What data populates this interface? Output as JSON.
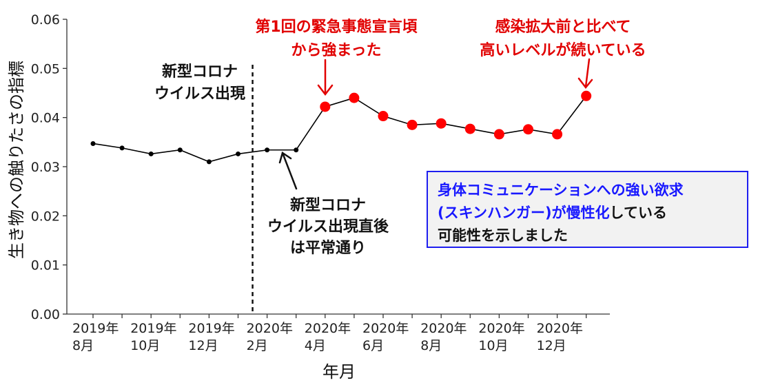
{
  "chart_data": {
    "type": "line",
    "x": [
      "2019-08",
      "2019-09",
      "2019-10",
      "2019-11",
      "2019-12",
      "2020-01",
      "2020-02",
      "2020-03",
      "2020-04",
      "2020-05",
      "2020-06",
      "2020-07",
      "2020-08",
      "2020-09",
      "2020-10",
      "2020-11",
      "2020-12",
      "2021-01"
    ],
    "values": [
      0.0347,
      0.0338,
      0.0326,
      0.0334,
      0.031,
      0.0326,
      0.0334,
      0.0334,
      0.0422,
      0.044,
      0.0403,
      0.0385,
      0.0388,
      0.0377,
      0.0366,
      0.0376,
      0.0366,
      0.0444
    ],
    "highlighted_from_index": 8,
    "ylim": [
      0,
      0.06
    ],
    "yticks": [
      "0.00",
      "0.01",
      "0.02",
      "0.03",
      "0.04",
      "0.05",
      "0.06"
    ],
    "xticks": [
      {
        "year": "2019年",
        "month": "8月"
      },
      {
        "year": "2019年",
        "month": "10月"
      },
      {
        "year": "2019年",
        "month": "12月"
      },
      {
        "year": "2020年",
        "month": "2月"
      },
      {
        "year": "2020年",
        "month": "4月"
      },
      {
        "year": "2020年",
        "month": "6月"
      },
      {
        "year": "2020年",
        "month": "8月"
      },
      {
        "year": "2020年",
        "month": "10月"
      },
      {
        "year": "2020年",
        "month": "12月"
      }
    ],
    "xlabel": "年月",
    "ylabel": "生き物への触りたさの指標",
    "colors": {
      "line": "#000000",
      "normal_marker": "#000000",
      "highlight_marker": "#ff0000",
      "accent_red": "#e10000",
      "accent_blue": "#1818ff"
    },
    "annotations": {
      "emergence_line1": "新型コロナ",
      "emergence_line2": "ウイルス出現",
      "after_line1": "新型コロナ",
      "after_line2": "ウイルス出現直後",
      "after_line3": "は平常通り",
      "emergency_line1": "第1回の緊急事態宣言頃",
      "emergency_line2": "から強まった",
      "persist_line1": "感染拡大前と比べて",
      "persist_line2": "高いレベルが続いている"
    },
    "info_box": {
      "line1": "身体コミュニケーションへの強い欲求",
      "line2_blue": "(スキンハンガー)が慢性化",
      "line2_black": "している",
      "line3": "可能性を示しました"
    }
  }
}
